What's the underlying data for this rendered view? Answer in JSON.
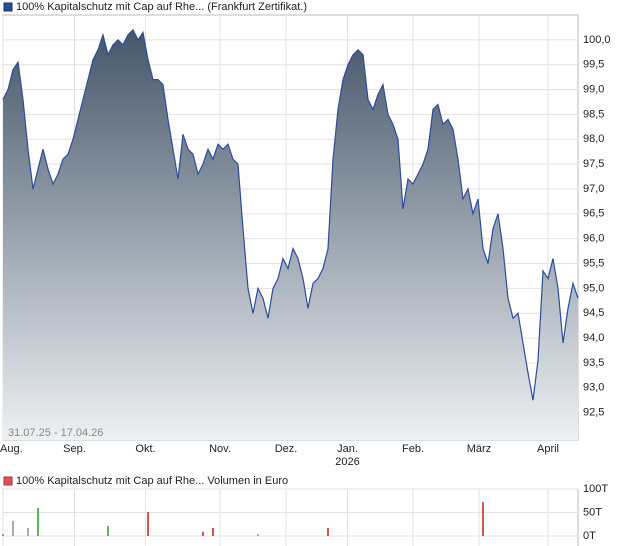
{
  "chart_data": [
    {
      "type": "area",
      "legend": "100% Kapitalschutz mit Cap  auf Rhe... (Frankfurt Zertifikat.)",
      "date_range": "31.07.25 - 17.04.26",
      "color": "#2b4c9b",
      "values": [
        98.8,
        99.0,
        99.4,
        99.55,
        98.8,
        97.8,
        97.0,
        97.4,
        97.8,
        97.4,
        97.1,
        97.3,
        97.6,
        97.7,
        98.0,
        98.4,
        98.8,
        99.2,
        99.6,
        99.8,
        100.1,
        99.7,
        99.9,
        100.0,
        99.9,
        100.1,
        100.2,
        100.0,
        100.15,
        99.6,
        99.2,
        99.2,
        99.1,
        98.4,
        97.8,
        97.2,
        98.1,
        97.8,
        97.7,
        97.3,
        97.5,
        97.8,
        97.6,
        97.9,
        97.8,
        97.9,
        97.6,
        97.5,
        96.2,
        95.0,
        94.5,
        95.0,
        94.8,
        94.4,
        95.0,
        95.2,
        95.6,
        95.4,
        95.8,
        95.6,
        95.2,
        94.6,
        95.1,
        95.2,
        95.4,
        95.8,
        97.6,
        98.6,
        99.2,
        99.5,
        99.7,
        99.8,
        99.7,
        98.8,
        98.6,
        98.9,
        99.1,
        98.5,
        98.3,
        98.0,
        96.6,
        97.2,
        97.1,
        97.3,
        97.5,
        97.8,
        98.6,
        98.7,
        98.3,
        98.4,
        98.2,
        97.6,
        96.8,
        97.0,
        96.5,
        96.8,
        95.8,
        95.5,
        96.2,
        96.5,
        95.8,
        94.8,
        94.4,
        94.5,
        93.9,
        93.3,
        92.75,
        93.55,
        95.35,
        95.2,
        95.6,
        95.0,
        93.9,
        94.6,
        95.1,
        94.8
      ],
      "xlim": [
        0,
        115
      ],
      "xticks": [
        {
          "value": 0,
          "label": "Aug."
        },
        {
          "value": 14.3,
          "label": "Sep."
        },
        {
          "value": 28.5,
          "label": "Okt."
        },
        {
          "value": 43.4,
          "label": "Nov."
        },
        {
          "value": 56.6,
          "label": "Dez."
        },
        {
          "value": 68.9,
          "label": "Jan."
        },
        {
          "value": 82,
          "label": "Feb."
        },
        {
          "value": 95.2,
          "label": "März"
        },
        {
          "value": 109,
          "label": "April"
        }
      ],
      "year_label": "2026",
      "ylim": [
        91.95,
        100.5
      ],
      "yticks": [
        {
          "value": 92.5,
          "label": "92,5"
        },
        {
          "value": 93,
          "label": "93,0"
        },
        {
          "value": 93.5,
          "label": "93,5"
        },
        {
          "value": 94,
          "label": "94,0"
        },
        {
          "value": 94.5,
          "label": "94,5"
        },
        {
          "value": 95,
          "label": "95,0"
        },
        {
          "value": 95.5,
          "label": "95,5"
        },
        {
          "value": 96,
          "label": "96,0"
        },
        {
          "value": 96.5,
          "label": "96,5"
        },
        {
          "value": 97,
          "label": "97,0"
        },
        {
          "value": 97.5,
          "label": "97,5"
        },
        {
          "value": 98,
          "label": "98,0"
        },
        {
          "value": 98.5,
          "label": "98,5"
        },
        {
          "value": 99,
          "label": "99,0"
        },
        {
          "value": 99.5,
          "label": "99,5"
        },
        {
          "value": 100,
          "label": "100,0"
        }
      ],
      "grid": true
    },
    {
      "type": "bar",
      "legend": "100% Kapitalschutz mit Cap  auf Rhe... Volumen in Euro",
      "color": "#d9534f",
      "x": [
        0,
        2,
        5,
        7,
        21,
        29,
        40,
        42,
        51,
        65,
        96
      ],
      "values": [
        4000,
        32000,
        17000,
        60000,
        21000,
        51000,
        9000,
        17000,
        4000,
        17000,
        72000
      ],
      "colors": [
        "#5cb85c",
        "#aaaaaa",
        "#aaaaaa",
        "#5cb85c",
        "#5cb85c",
        "#d9534f",
        "#d9534f",
        "#d9534f",
        "#aaaaaa",
        "#d9534f",
        "#d9534f"
      ],
      "xlim": [
        0,
        115
      ],
      "ylim": [
        0,
        100000
      ],
      "yticks": [
        {
          "value": 0,
          "label": "0T"
        },
        {
          "value": 50000,
          "label": "50T"
        },
        {
          "value": 100000,
          "label": "100T"
        }
      ],
      "grid": true
    }
  ]
}
